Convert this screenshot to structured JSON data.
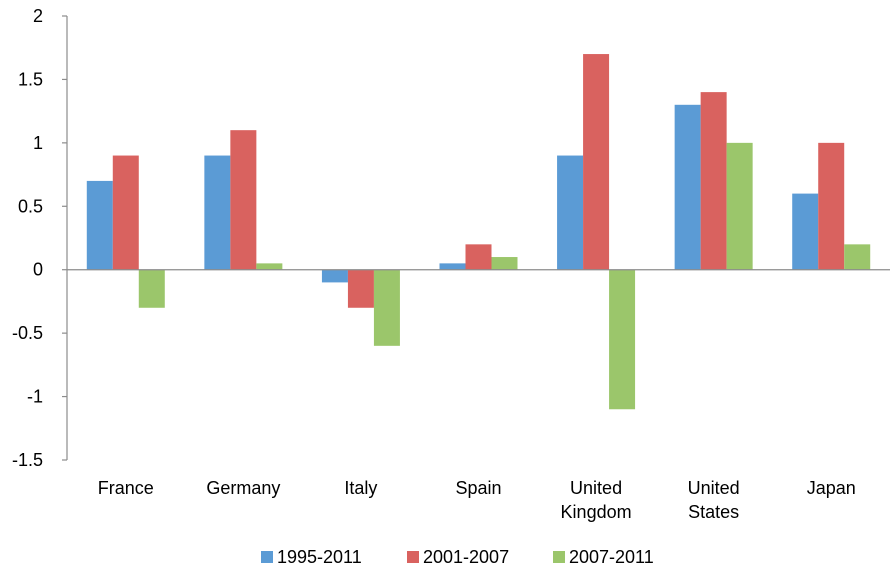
{
  "chart_data": {
    "type": "bar",
    "categories": [
      [
        "France"
      ],
      [
        "Germany"
      ],
      [
        "Italy"
      ],
      [
        "Spain"
      ],
      [
        "United",
        "Kingdom"
      ],
      [
        "United",
        "States"
      ],
      [
        "Japan"
      ]
    ],
    "series": [
      {
        "name": "1995-2011",
        "color": "#5b9bd5",
        "values": [
          0.7,
          0.9,
          -0.1,
          0.05,
          0.9,
          1.3,
          0.6
        ]
      },
      {
        "name": "2001-2007",
        "color": "#d9625f",
        "values": [
          0.9,
          1.1,
          -0.3,
          0.2,
          1.7,
          1.4,
          1.0
        ]
      },
      {
        "name": "2007-2011",
        "color": "#9bc66b",
        "values": [
          -0.3,
          0.05,
          -0.6,
          0.1,
          -1.1,
          1.0,
          0.2
        ]
      }
    ],
    "y_ticks": [
      "2",
      "1.5",
      "1",
      "0.5",
      "0",
      "-0.5",
      "-1",
      "-1.5"
    ],
    "ylim": [
      -1.5,
      2
    ],
    "grid": false,
    "legend_position": "bottom"
  }
}
